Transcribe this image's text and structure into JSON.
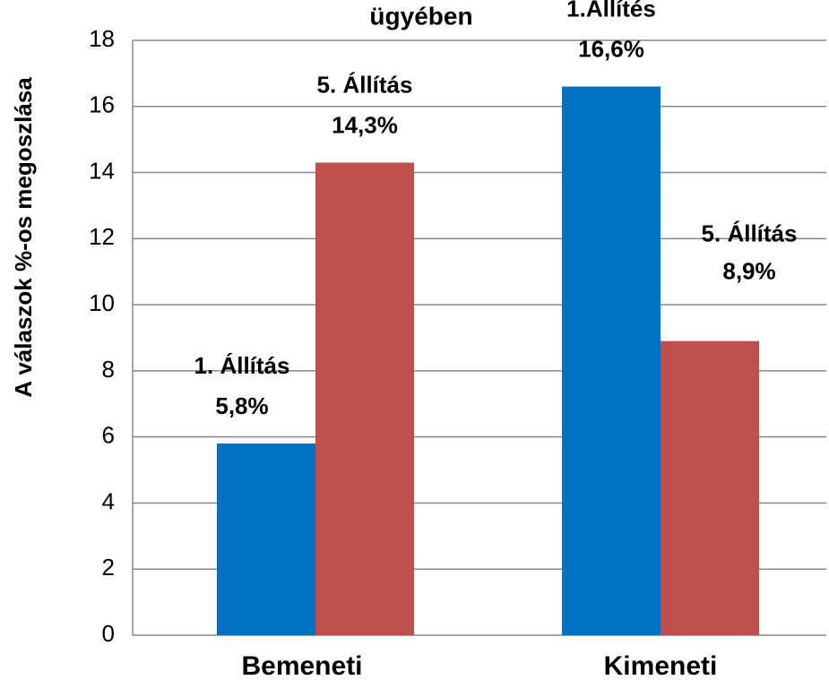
{
  "chart_data": {
    "type": "bar",
    "title": "ügyében",
    "y_label": "A válaszok %-os megoszlása",
    "categories": [
      "Bemeneti",
      "Kimeneti"
    ],
    "series": [
      {
        "color": "#0070c0",
        "values": [
          5.8,
          16.6
        ],
        "point_labels": [
          "1. Állítás",
          "1.Állítés"
        ],
        "value_labels": [
          "5,8%",
          "16,6%"
        ]
      },
      {
        "color": "#c0504d",
        "values": [
          14.3,
          8.9
        ],
        "point_labels": [
          "5. Állítás",
          "5. Állítás"
        ],
        "value_labels": [
          "14,3%",
          "8,9%"
        ]
      }
    ],
    "ylim": [
      0,
      18
    ],
    "yticks": [
      0,
      2,
      4,
      6,
      8,
      10,
      12,
      14,
      16,
      18
    ],
    "grid": true
  }
}
